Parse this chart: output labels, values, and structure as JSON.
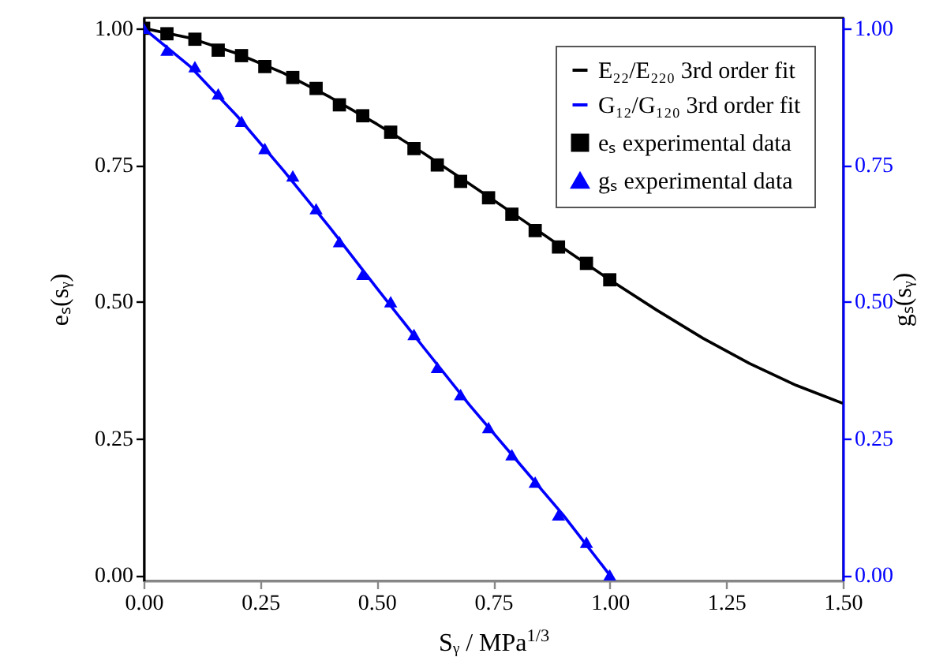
{
  "chart_data": {
    "type": "line",
    "xlabel": "Sᵧ / MPa$^{1/3}$",
    "ylabel": "eₛ(sᵧ)",
    "y2label": "gₛ(sᵧ)",
    "xlim": [
      0,
      1.5
    ],
    "xticks": [
      {
        "value": 0,
        "label": "0.00"
      },
      {
        "value": 0.25,
        "label": "0.25"
      },
      {
        "value": 0.5,
        "label": "0.50"
      },
      {
        "value": 0.75,
        "label": "0.75"
      },
      {
        "value": 1,
        "label": "1.00"
      },
      {
        "value": 1.25,
        "label": "1.25"
      },
      {
        "value": 1.5,
        "label": "1.50"
      }
    ],
    "ylim": [
      -0.01,
      1.02
    ],
    "yticks": [
      {
        "value": 0,
        "label": "0.00"
      },
      {
        "value": 0.25,
        "label": "0.25"
      },
      {
        "value": 0.5,
        "label": "0.50"
      },
      {
        "value": 0.75,
        "label": "0.75"
      },
      {
        "value": 1,
        "label": "1.00"
      }
    ],
    "y2lim": [
      -0.01,
      1.02
    ],
    "y2ticks": [
      {
        "value": 0,
        "label": "0.00"
      },
      {
        "value": 0.25,
        "label": "0.25"
      },
      {
        "value": 0.5,
        "label": "0.50"
      },
      {
        "value": 0.75,
        "label": "0.75"
      },
      {
        "value": 1,
        "label": "1.00"
      }
    ],
    "legend": "top right",
    "series": [
      {
        "name": "E₂₂/E₂₂₀ 3rd order fit",
        "marker": "none",
        "color": "#000000",
        "x": [
          0,
          0.1,
          0.2,
          0.3,
          0.4,
          0.5,
          0.6,
          0.7,
          0.8,
          0.9,
          1.0,
          1.1,
          1.2,
          1.3,
          1.4,
          1.5
        ],
        "values": [
          1.0,
          0.982,
          0.954,
          0.918,
          0.874,
          0.825,
          0.772,
          0.715,
          0.657,
          0.598,
          0.54,
          0.485,
          0.433,
          0.387,
          0.347,
          0.314
        ]
      },
      {
        "name": "G₁₂/G₁₂₀ 3rd order fit",
        "marker": "none",
        "axis": "y2",
        "color": "#0000ff",
        "x": [
          0,
          0.1,
          0.2,
          0.3,
          0.4,
          0.5,
          0.6,
          0.7,
          0.8,
          0.9,
          1.0
        ],
        "values": [
          1.0,
          0.93,
          0.84,
          0.74,
          0.635,
          0.525,
          0.417,
          0.31,
          0.21,
          0.11,
          0.0
        ]
      },
      {
        "name": "eₛ experimental data",
        "type": "scatter",
        "marker": "square",
        "color": "#000000",
        "x": [
          0,
          0.05,
          0.11,
          0.16,
          0.21,
          0.26,
          0.32,
          0.37,
          0.42,
          0.47,
          0.53,
          0.58,
          0.63,
          0.68,
          0.74,
          0.79,
          0.84,
          0.89,
          0.95,
          1.0
        ],
        "values": [
          1.0,
          0.99,
          0.98,
          0.96,
          0.95,
          0.93,
          0.91,
          0.89,
          0.86,
          0.84,
          0.81,
          0.78,
          0.75,
          0.72,
          0.69,
          0.66,
          0.63,
          0.6,
          0.57,
          0.54
        ]
      },
      {
        "name": "gₛ experimental data",
        "type": "scatter",
        "marker": "triangle",
        "axis": "y2",
        "color": "#0000ff",
        "x": [
          0,
          0.05,
          0.11,
          0.16,
          0.21,
          0.26,
          0.32,
          0.37,
          0.42,
          0.47,
          0.53,
          0.58,
          0.63,
          0.68,
          0.74,
          0.79,
          0.84,
          0.89,
          0.95,
          1.0
        ],
        "values": [
          1.0,
          0.96,
          0.93,
          0.88,
          0.83,
          0.78,
          0.73,
          0.67,
          0.61,
          0.55,
          0.5,
          0.44,
          0.38,
          0.33,
          0.27,
          0.22,
          0.17,
          0.11,
          0.06,
          0.0
        ]
      }
    ]
  }
}
